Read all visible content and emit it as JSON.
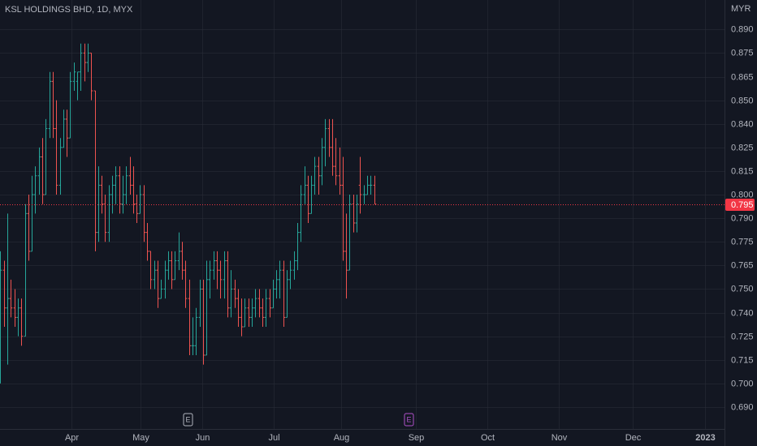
{
  "chart_data": {
    "type": "ohlc",
    "title": "KSL HOLDINGS BHD, 1D, MYX",
    "unit_label": "MYR",
    "up_color": "#26a69a",
    "down_color": "#ef5350",
    "grid": true,
    "open": [
      0.735,
      0.76,
      0.74,
      0.745,
      0.74,
      0.735,
      0.74,
      0.725,
      0.79,
      0.77,
      0.8,
      0.81,
      0.82,
      0.8,
      0.835,
      0.86,
      0.835,
      0.805,
      0.825,
      0.84,
      0.83,
      0.86,
      0.86,
      0.865,
      0.875,
      0.87,
      0.875,
      0.855,
      0.78,
      0.805,
      0.795,
      0.78,
      0.8,
      0.805,
      0.81,
      0.795,
      0.8,
      0.81,
      0.805,
      0.795,
      0.79,
      0.8,
      0.78,
      0.77,
      0.755,
      0.76,
      0.745,
      0.75,
      0.76,
      0.765,
      0.755,
      0.765,
      0.77,
      0.76,
      0.745,
      0.72,
      0.72,
      0.735,
      0.75,
      0.715,
      0.755,
      0.76,
      0.765,
      0.76,
      0.755,
      0.765,
      0.74,
      0.75,
      0.745,
      0.735,
      0.73,
      0.74,
      0.735,
      0.74,
      0.745,
      0.74,
      0.735,
      0.745,
      0.74,
      0.75,
      0.755,
      0.76,
      0.735,
      0.755,
      0.76,
      0.765,
      0.78,
      0.8,
      0.805,
      0.79,
      0.805,
      0.815,
      0.81,
      0.825,
      0.835,
      0.825,
      0.815,
      0.81,
      0.805,
      0.77,
      0.76,
      0.795,
      0.785,
      0.805,
      0.8,
      0.8,
      0.805,
      0.805
    ],
    "high": [
      0.77,
      0.765,
      0.79,
      0.755,
      0.75,
      0.745,
      0.745,
      0.795,
      0.8,
      0.81,
      0.815,
      0.825,
      0.83,
      0.84,
      0.865,
      0.865,
      0.85,
      0.83,
      0.845,
      0.845,
      0.865,
      0.87,
      0.865,
      0.88,
      0.88,
      0.88,
      0.875,
      0.855,
      0.815,
      0.81,
      0.8,
      0.805,
      0.81,
      0.815,
      0.815,
      0.81,
      0.815,
      0.82,
      0.815,
      0.8,
      0.805,
      0.805,
      0.785,
      0.77,
      0.765,
      0.765,
      0.755,
      0.765,
      0.77,
      0.77,
      0.77,
      0.78,
      0.775,
      0.765,
      0.755,
      0.735,
      0.74,
      0.755,
      0.755,
      0.765,
      0.765,
      0.77,
      0.77,
      0.765,
      0.77,
      0.77,
      0.76,
      0.755,
      0.75,
      0.745,
      0.745,
      0.745,
      0.745,
      0.75,
      0.75,
      0.745,
      0.75,
      0.75,
      0.755,
      0.76,
      0.765,
      0.765,
      0.76,
      0.765,
      0.77,
      0.785,
      0.805,
      0.815,
      0.81,
      0.81,
      0.82,
      0.82,
      0.83,
      0.84,
      0.84,
      0.84,
      0.83,
      0.825,
      0.82,
      0.79,
      0.8,
      0.8,
      0.8,
      0.82,
      0.805,
      0.81,
      0.81,
      0.81
    ],
    "low": [
      0.7,
      0.73,
      0.71,
      0.735,
      0.73,
      0.725,
      0.72,
      0.725,
      0.765,
      0.77,
      0.79,
      0.8,
      0.795,
      0.8,
      0.83,
      0.83,
      0.8,
      0.8,
      0.825,
      0.82,
      0.83,
      0.855,
      0.85,
      0.855,
      0.86,
      0.865,
      0.85,
      0.77,
      0.775,
      0.79,
      0.775,
      0.775,
      0.79,
      0.795,
      0.79,
      0.79,
      0.795,
      0.8,
      0.79,
      0.785,
      0.79,
      0.775,
      0.765,
      0.75,
      0.75,
      0.74,
      0.745,
      0.745,
      0.755,
      0.75,
      0.755,
      0.76,
      0.755,
      0.74,
      0.715,
      0.715,
      0.715,
      0.73,
      0.71,
      0.715,
      0.745,
      0.755,
      0.75,
      0.745,
      0.745,
      0.735,
      0.735,
      0.74,
      0.73,
      0.725,
      0.73,
      0.73,
      0.73,
      0.735,
      0.735,
      0.73,
      0.73,
      0.735,
      0.74,
      0.745,
      0.745,
      0.73,
      0.735,
      0.75,
      0.755,
      0.76,
      0.775,
      0.795,
      0.785,
      0.79,
      0.8,
      0.8,
      0.805,
      0.815,
      0.82,
      0.81,
      0.805,
      0.8,
      0.765,
      0.745,
      0.76,
      0.78,
      0.78,
      0.79,
      0.795,
      0.8,
      0.8,
      0.795
    ],
    "close": [
      0.76,
      0.74,
      0.745,
      0.74,
      0.735,
      0.74,
      0.725,
      0.79,
      0.77,
      0.8,
      0.81,
      0.82,
      0.8,
      0.835,
      0.86,
      0.835,
      0.805,
      0.825,
      0.84,
      0.83,
      0.86,
      0.865,
      0.865,
      0.875,
      0.87,
      0.875,
      0.855,
      0.78,
      0.805,
      0.795,
      0.78,
      0.8,
      0.805,
      0.81,
      0.795,
      0.8,
      0.81,
      0.805,
      0.795,
      0.79,
      0.8,
      0.78,
      0.77,
      0.755,
      0.76,
      0.745,
      0.75,
      0.76,
      0.765,
      0.755,
      0.765,
      0.77,
      0.76,
      0.745,
      0.72,
      0.72,
      0.735,
      0.75,
      0.715,
      0.755,
      0.76,
      0.765,
      0.76,
      0.755,
      0.765,
      0.74,
      0.75,
      0.745,
      0.735,
      0.73,
      0.74,
      0.735,
      0.74,
      0.745,
      0.74,
      0.735,
      0.745,
      0.74,
      0.75,
      0.755,
      0.76,
      0.735,
      0.755,
      0.76,
      0.765,
      0.78,
      0.8,
      0.805,
      0.79,
      0.805,
      0.815,
      0.81,
      0.825,
      0.835,
      0.825,
      0.815,
      0.81,
      0.805,
      0.77,
      0.76,
      0.795,
      0.785,
      0.795,
      0.8,
      0.8,
      0.805,
      0.805,
      0.795
    ],
    "last_price": 0.795,
    "last_price_color": "#f23645",
    "ylim": [
      0.6759,
      0.9031
    ],
    "yticks": [
      {
        "value": 0.8875,
        "label": "0.890"
      },
      {
        "value": 0.875,
        "label": "0.875"
      },
      {
        "value": 0.8625,
        "label": "0.865"
      },
      {
        "value": 0.85,
        "label": "0.850"
      },
      {
        "value": 0.8375,
        "label": "0.840"
      },
      {
        "value": 0.825,
        "label": "0.825"
      },
      {
        "value": 0.8125,
        "label": "0.815"
      },
      {
        "value": 0.8,
        "label": "0.800"
      },
      {
        "value": 0.7875,
        "label": "0.790"
      },
      {
        "value": 0.775,
        "label": "0.775"
      },
      {
        "value": 0.7625,
        "label": "0.765"
      },
      {
        "value": 0.75,
        "label": "0.750"
      },
      {
        "value": 0.7375,
        "label": "0.740"
      },
      {
        "value": 0.725,
        "label": "0.725"
      },
      {
        "value": 0.7125,
        "label": "0.715"
      },
      {
        "value": 0.7,
        "label": "0.700"
      },
      {
        "value": 0.6875,
        "label": "0.690"
      }
    ],
    "xlim": [
      -0.116,
      207.33
    ],
    "xticks": [
      {
        "value": 20.35,
        "label": "Apr"
      },
      {
        "value": 40.12,
        "label": "May"
      },
      {
        "value": 57.79,
        "label": "Jun"
      },
      {
        "value": 78.26,
        "label": "Jul"
      },
      {
        "value": 97.56,
        "label": "Aug"
      },
      {
        "value": 118.95,
        "label": "Sep"
      },
      {
        "value": 139.42,
        "label": "Oct"
      },
      {
        "value": 159.88,
        "label": "Nov"
      },
      {
        "value": 181.05,
        "label": "Dec"
      },
      {
        "value": 201.74,
        "label": "2023"
      }
    ],
    "events": [
      {
        "x": 53.6,
        "label": "E",
        "color": "#b2b5be"
      },
      {
        "x": 116.9,
        "label": "E",
        "color": "#b052c9"
      }
    ]
  }
}
